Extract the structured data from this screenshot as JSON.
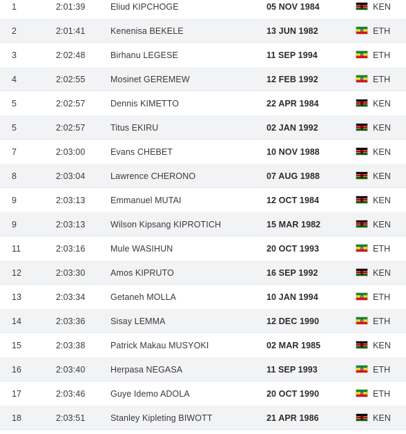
{
  "rows": [
    {
      "rank": "1",
      "mark": "2:01:39",
      "athlete": "Eliud KIPCHOGE",
      "dob": "05 NOV 1984",
      "country": "KEN",
      "flag": "kenya-flag-icon"
    },
    {
      "rank": "2",
      "mark": "2:01:41",
      "athlete": "Kenenisa BEKELE",
      "dob": "13 JUN 1982",
      "country": "ETH",
      "flag": "ethiopia-flag-icon"
    },
    {
      "rank": "3",
      "mark": "2:02:48",
      "athlete": "Birhanu LEGESE",
      "dob": "11 SEP 1994",
      "country": "ETH",
      "flag": "ethiopia-flag-icon"
    },
    {
      "rank": "4",
      "mark": "2:02:55",
      "athlete": "Mosinet GEREMEW",
      "dob": "12 FEB 1992",
      "country": "ETH",
      "flag": "ethiopia-flag-icon"
    },
    {
      "rank": "5",
      "mark": "2:02:57",
      "athlete": "Dennis KIMETTO",
      "dob": "22 APR 1984",
      "country": "KEN",
      "flag": "kenya-flag-icon"
    },
    {
      "rank": "5",
      "mark": "2:02:57",
      "athlete": "Titus EKIRU",
      "dob": "02 JAN 1992",
      "country": "KEN",
      "flag": "kenya-flag-icon"
    },
    {
      "rank": "7",
      "mark": "2:03:00",
      "athlete": "Evans CHEBET",
      "dob": "10 NOV 1988",
      "country": "KEN",
      "flag": "kenya-flag-icon"
    },
    {
      "rank": "8",
      "mark": "2:03:04",
      "athlete": "Lawrence CHERONO",
      "dob": "07 AUG 1988",
      "country": "KEN",
      "flag": "kenya-flag-icon"
    },
    {
      "rank": "9",
      "mark": "2:03:13",
      "athlete": "Emmanuel MUTAI",
      "dob": "12 OCT 1984",
      "country": "KEN",
      "flag": "kenya-flag-icon"
    },
    {
      "rank": "9",
      "mark": "2:03:13",
      "athlete": "Wilson Kipsang KIPROTICH",
      "dob": "15 MAR 1982",
      "country": "KEN",
      "flag": "kenya-flag-icon"
    },
    {
      "rank": "11",
      "mark": "2:03:16",
      "athlete": "Mule WASIHUN",
      "dob": "20 OCT 1993",
      "country": "ETH",
      "flag": "ethiopia-flag-icon"
    },
    {
      "rank": "12",
      "mark": "2:03:30",
      "athlete": "Amos KIPRUTO",
      "dob": "16 SEP 1992",
      "country": "KEN",
      "flag": "kenya-flag-icon"
    },
    {
      "rank": "13",
      "mark": "2:03:34",
      "athlete": "Getaneh MOLLA",
      "dob": "10 JAN 1994",
      "country": "ETH",
      "flag": "ethiopia-flag-icon"
    },
    {
      "rank": "14",
      "mark": "2:03:36",
      "athlete": "Sisay LEMMA",
      "dob": "12 DEC 1990",
      "country": "ETH",
      "flag": "ethiopia-flag-icon"
    },
    {
      "rank": "15",
      "mark": "2:03:38",
      "athlete": "Patrick Makau MUSYOKI",
      "dob": "02 MAR 1985",
      "country": "KEN",
      "flag": "kenya-flag-icon"
    },
    {
      "rank": "16",
      "mark": "2:03:40",
      "athlete": "Herpasa NEGASA",
      "dob": "11 SEP 1993",
      "country": "ETH",
      "flag": "ethiopia-flag-icon"
    },
    {
      "rank": "17",
      "mark": "2:03:46",
      "athlete": "Guye Idemo ADOLA",
      "dob": "20 OCT 1990",
      "country": "ETH",
      "flag": "ethiopia-flag-icon"
    },
    {
      "rank": "18",
      "mark": "2:03:51",
      "athlete": "Stanley Kipleting BIWOTT",
      "dob": "21 APR 1986",
      "country": "KEN",
      "flag": "kenya-flag-icon"
    }
  ],
  "colors": {
    "row_alt_bg": "#f2f3f5",
    "text": "#3a3a3a",
    "kenya": [
      "#000000",
      "#ffffff",
      "#bb0000",
      "#006600"
    ],
    "ethiopia": [
      "#078930",
      "#fcdd09",
      "#da121a",
      "#0f47af"
    ]
  }
}
